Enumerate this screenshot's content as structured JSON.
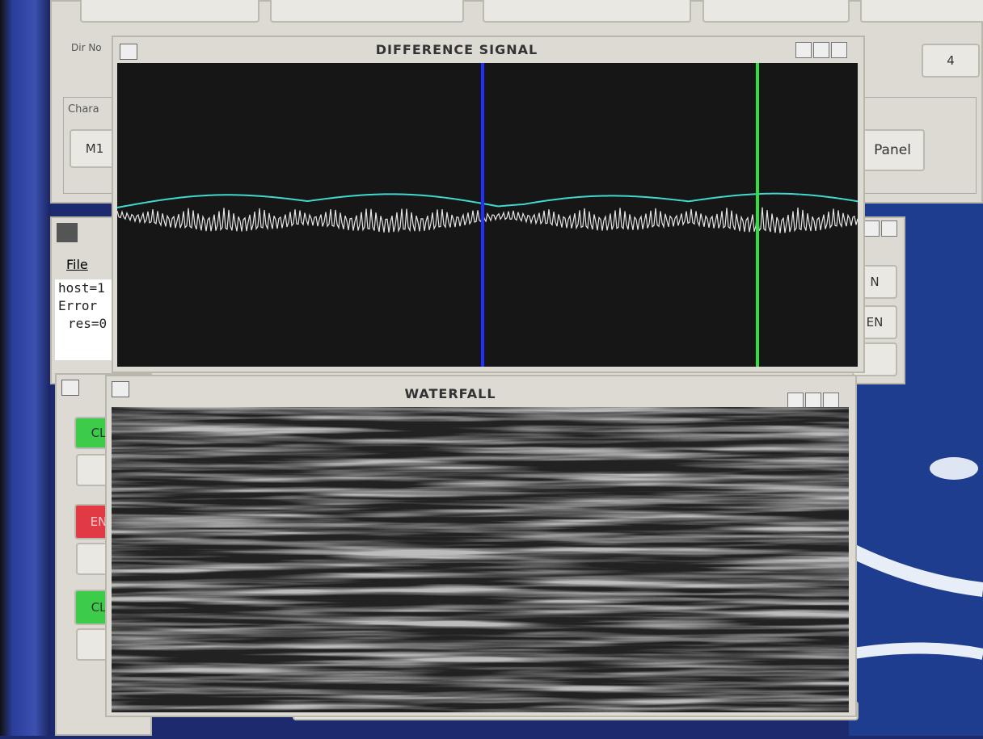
{
  "main_panel": {
    "dir_label": "Dir No",
    "group_label": "Chara",
    "button": "M1",
    "panel_button": "Panel",
    "field": "4"
  },
  "console": {
    "menu": "File",
    "lines": [
      "host=1",
      "Error",
      "res=0"
    ],
    "buttons": [
      "N",
      "EN"
    ]
  },
  "difference_signal": {
    "title": "DIFFERENCE SIGNAL"
  },
  "control_panel": {
    "buttons": [
      "CL",
      "EN",
      "CL"
    ]
  },
  "waterfall": {
    "title": "WATERFALL"
  }
}
